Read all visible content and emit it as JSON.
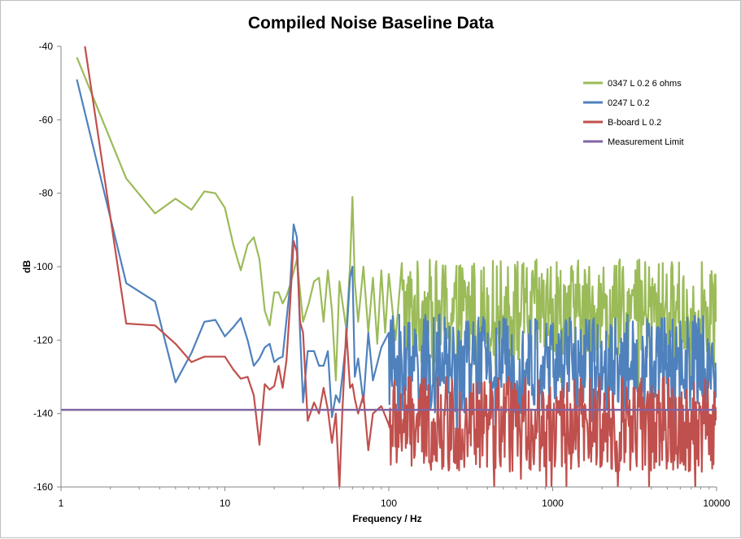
{
  "chart_data": {
    "type": "line",
    "title": "Compiled Noise Baseline Data",
    "xlabel": "Frequency / Hz",
    "ylabel": "dB",
    "xscale": "log",
    "xlim": [
      1,
      10000
    ],
    "ylim": [
      -160,
      -40
    ],
    "x_ticks": [
      1,
      10,
      100,
      1000,
      10000
    ],
    "x_tick_labels": [
      "1",
      "10",
      "100",
      "1000",
      "10000"
    ],
    "y_ticks": [
      -40,
      -60,
      -80,
      -100,
      -120,
      -140,
      -160
    ],
    "y_tick_labels": [
      "-40",
      "-60",
      "-80",
      "-100",
      "-120",
      "-140",
      "-160"
    ],
    "grid": false,
    "legend_position": "top-right",
    "series": [
      {
        "name": "0347 L 0.2 6 ohms",
        "color": "#9bbb59",
        "noise_band": {
          "from_hz": 60,
          "low": -127,
          "high": -98
        },
        "points": [
          [
            1.25,
            -43
          ],
          [
            2.5,
            -76
          ],
          [
            3.75,
            -85.5
          ],
          [
            5,
            -81.5
          ],
          [
            6.25,
            -84.5
          ],
          [
            7.5,
            -79.5
          ],
          [
            8.75,
            -80
          ],
          [
            10,
            -84
          ],
          [
            11.25,
            -94
          ],
          [
            12.5,
            -101
          ],
          [
            13.75,
            -94
          ],
          [
            15,
            -92
          ],
          [
            16.25,
            -98
          ],
          [
            17.5,
            -112
          ],
          [
            18.75,
            -116
          ],
          [
            20,
            -107
          ],
          [
            21.25,
            -107
          ],
          [
            22.5,
            -110
          ],
          [
            23.75,
            -108
          ],
          [
            25,
            -105
          ],
          [
            27.5,
            -98
          ],
          [
            30,
            -115
          ],
          [
            32.5,
            -110
          ],
          [
            35,
            -104
          ],
          [
            37.5,
            -103
          ],
          [
            40,
            -115
          ],
          [
            42.5,
            -101
          ],
          [
            45,
            -112
          ],
          [
            47.5,
            -131
          ],
          [
            50,
            -104
          ],
          [
            55,
            -117
          ],
          [
            58,
            -100
          ],
          [
            60,
            -81
          ],
          [
            62,
            -104
          ],
          [
            65,
            -115
          ],
          [
            70,
            -100
          ],
          [
            75,
            -118
          ],
          [
            80,
            -103
          ],
          [
            85,
            -121
          ],
          [
            90,
            -101
          ],
          [
            95,
            -118
          ],
          [
            100,
            -102
          ],
          [
            110,
            -120
          ],
          [
            120,
            -99
          ]
        ]
      },
      {
        "name": "0247 L 0.2",
        "color": "#4f81bd",
        "noise_band": {
          "from_hz": 60,
          "low": -140,
          "high": -113
        },
        "points": [
          [
            1.25,
            -49
          ],
          [
            2.5,
            -104.5
          ],
          [
            3.75,
            -109.5
          ],
          [
            5,
            -131.5
          ],
          [
            6.25,
            -123.5
          ],
          [
            7.5,
            -115
          ],
          [
            8.75,
            -114.5
          ],
          [
            10,
            -119
          ],
          [
            11.25,
            -116.5
          ],
          [
            12.5,
            -114
          ],
          [
            13.75,
            -120
          ],
          [
            15,
            -127
          ],
          [
            16.25,
            -125
          ],
          [
            17.5,
            -122
          ],
          [
            18.75,
            -121
          ],
          [
            20,
            -126
          ],
          [
            21.25,
            -125
          ],
          [
            22.5,
            -124.5
          ],
          [
            25,
            -105
          ],
          [
            26.25,
            -88.5
          ],
          [
            27.5,
            -92
          ],
          [
            28.75,
            -118
          ],
          [
            30,
            -137
          ],
          [
            32,
            -123
          ],
          [
            35,
            -123
          ],
          [
            37.5,
            -127
          ],
          [
            40,
            -127
          ],
          [
            42.5,
            -123
          ],
          [
            45,
            -141
          ],
          [
            47.5,
            -135
          ],
          [
            50,
            -137
          ],
          [
            52,
            -130
          ],
          [
            55,
            -120
          ],
          [
            58,
            -103
          ],
          [
            60,
            -100
          ],
          [
            62,
            -130
          ],
          [
            65,
            -125
          ],
          [
            70,
            -137
          ],
          [
            75,
            -118
          ],
          [
            80,
            -131
          ],
          [
            90,
            -122
          ],
          [
            100,
            -118
          ]
        ]
      },
      {
        "name": "B-board L 0.2",
        "color": "#c0504d",
        "noise_band": {
          "from_hz": 60,
          "low": -156,
          "high": -130
        },
        "points": [
          [
            1.4,
            -40
          ],
          [
            2.5,
            -115.5
          ],
          [
            3.75,
            -116
          ],
          [
            5,
            -121
          ],
          [
            6.25,
            -126
          ],
          [
            7.5,
            -124.5
          ],
          [
            8.75,
            -124.5
          ],
          [
            10,
            -124.5
          ],
          [
            11.25,
            -128
          ],
          [
            12.5,
            -130.5
          ],
          [
            13.75,
            -130
          ],
          [
            15,
            -135
          ],
          [
            16.25,
            -148.5
          ],
          [
            17.5,
            -132
          ],
          [
            18.75,
            -133.5
          ],
          [
            20,
            -132.5
          ],
          [
            21.25,
            -127
          ],
          [
            22.5,
            -133
          ],
          [
            23.75,
            -125.5
          ],
          [
            25,
            -110
          ],
          [
            26.25,
            -93
          ],
          [
            27.5,
            -96
          ],
          [
            28.75,
            -115
          ],
          [
            30,
            -118
          ],
          [
            32,
            -142
          ],
          [
            35,
            -137
          ],
          [
            37.5,
            -140
          ],
          [
            40,
            -133
          ],
          [
            42.5,
            -139
          ],
          [
            45,
            -148
          ],
          [
            47.5,
            -140
          ],
          [
            50,
            -160
          ],
          [
            52,
            -140
          ],
          [
            55,
            -117
          ],
          [
            58,
            -133
          ],
          [
            60,
            -132
          ],
          [
            62,
            -136
          ],
          [
            65,
            -140
          ],
          [
            70,
            -135
          ],
          [
            75,
            -150
          ],
          [
            80,
            -140
          ],
          [
            90,
            -138
          ],
          [
            100,
            -143
          ]
        ]
      },
      {
        "name": "Measurement Limit",
        "color": "#8064a2",
        "points": [
          [
            1,
            -139
          ],
          [
            10000,
            -139
          ]
        ]
      }
    ]
  }
}
